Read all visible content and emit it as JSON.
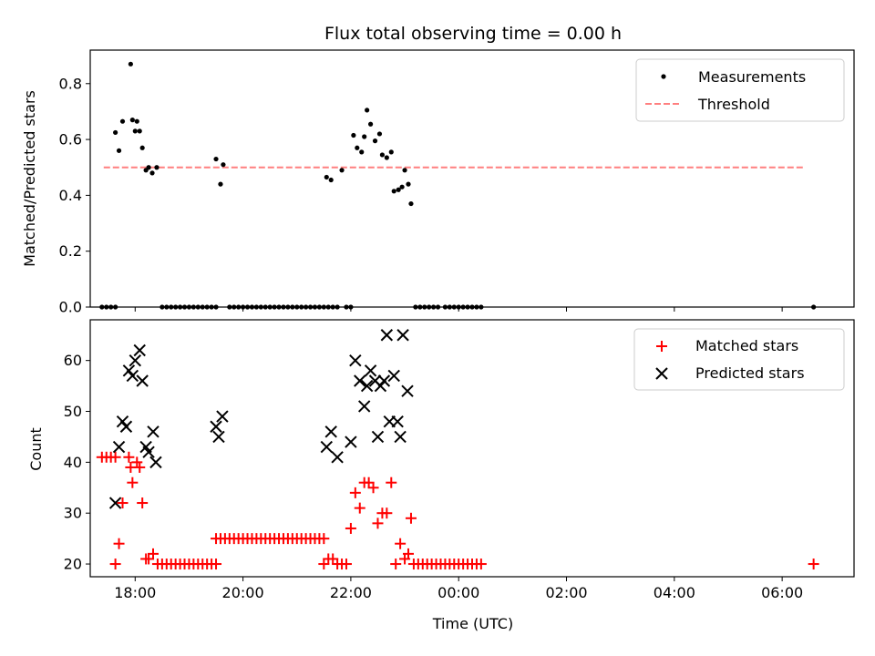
{
  "chart_data": [
    {
      "type": "scatter",
      "title": "Flux total observing time = 0.00 h",
      "xlabel": "",
      "ylabel": "Matched/Predicted stars",
      "ylim": [
        0,
        0.92
      ],
      "xlim": [
        "17:10",
        "07:20"
      ],
      "yticks": [
        "0.0",
        "0.2",
        "0.4",
        "0.6",
        "0.8"
      ],
      "legend": "top-right",
      "threshold": {
        "name": "Threshold",
        "value": 0.5,
        "x_range": [
          "17:25",
          "06:25"
        ],
        "color": "#ff7f7f"
      },
      "series": [
        {
          "name": "Measurements",
          "color": "#000000",
          "points": [
            [
              "17:23",
              0.0
            ],
            [
              "17:28",
              0.0
            ],
            [
              "17:33",
              0.0
            ],
            [
              "17:38",
              0.0
            ],
            [
              "17:38",
              0.625
            ],
            [
              "17:42",
              0.56
            ],
            [
              "17:46",
              0.665
            ],
            [
              "17:55",
              0.87
            ],
            [
              "17:57",
              0.67
            ],
            [
              "18:00",
              0.63
            ],
            [
              "18:02",
              0.665
            ],
            [
              "18:05",
              0.63
            ],
            [
              "18:08",
              0.57
            ],
            [
              "18:12",
              0.49
            ],
            [
              "18:15",
              0.5
            ],
            [
              "18:19",
              0.48
            ],
            [
              "18:24",
              0.5
            ],
            [
              "18:30",
              0.0
            ],
            [
              "18:35",
              0.0
            ],
            [
              "18:40",
              0.0
            ],
            [
              "18:45",
              0.0
            ],
            [
              "18:50",
              0.0
            ],
            [
              "18:55",
              0.0
            ],
            [
              "19:00",
              0.0
            ],
            [
              "19:05",
              0.0
            ],
            [
              "19:10",
              0.0
            ],
            [
              "19:15",
              0.0
            ],
            [
              "19:20",
              0.0
            ],
            [
              "19:25",
              0.0
            ],
            [
              "19:30",
              0.0
            ],
            [
              "19:30",
              0.53
            ],
            [
              "19:35",
              0.44
            ],
            [
              "19:38",
              0.51
            ],
            [
              "19:45",
              0.0
            ],
            [
              "19:50",
              0.0
            ],
            [
              "19:55",
              0.0
            ],
            [
              "20:00",
              0.0
            ],
            [
              "20:05",
              0.0
            ],
            [
              "20:10",
              0.0
            ],
            [
              "20:15",
              0.0
            ],
            [
              "20:20",
              0.0
            ],
            [
              "20:25",
              0.0
            ],
            [
              "20:30",
              0.0
            ],
            [
              "20:35",
              0.0
            ],
            [
              "20:40",
              0.0
            ],
            [
              "20:45",
              0.0
            ],
            [
              "20:50",
              0.0
            ],
            [
              "20:55",
              0.0
            ],
            [
              "21:00",
              0.0
            ],
            [
              "21:05",
              0.0
            ],
            [
              "21:10",
              0.0
            ],
            [
              "21:15",
              0.0
            ],
            [
              "21:20",
              0.0
            ],
            [
              "21:25",
              0.0
            ],
            [
              "21:30",
              0.0
            ],
            [
              "21:35",
              0.0
            ],
            [
              "21:40",
              0.0
            ],
            [
              "21:33",
              0.465
            ],
            [
              "21:38",
              0.455
            ],
            [
              "21:45",
              0.0
            ],
            [
              "21:50",
              0.49
            ],
            [
              "21:55",
              0.0
            ],
            [
              "22:00",
              0.0
            ],
            [
              "22:03",
              0.615
            ],
            [
              "22:07",
              0.57
            ],
            [
              "22:12",
              0.555
            ],
            [
              "22:15",
              0.61
            ],
            [
              "22:18",
              0.705
            ],
            [
              "22:22",
              0.655
            ],
            [
              "22:27",
              0.595
            ],
            [
              "22:32",
              0.62
            ],
            [
              "22:35",
              0.545
            ],
            [
              "22:40",
              0.535
            ],
            [
              "22:45",
              0.555
            ],
            [
              "22:48",
              0.415
            ],
            [
              "22:53",
              0.42
            ],
            [
              "22:57",
              0.43
            ],
            [
              "23:00",
              0.49
            ],
            [
              "23:04",
              0.44
            ],
            [
              "23:07",
              0.37
            ],
            [
              "23:12",
              0.0
            ],
            [
              "23:17",
              0.0
            ],
            [
              "23:22",
              0.0
            ],
            [
              "23:27",
              0.0
            ],
            [
              "23:32",
              0.0
            ],
            [
              "23:37",
              0.0
            ],
            [
              "23:45",
              0.0
            ],
            [
              "23:50",
              0.0
            ],
            [
              "23:55",
              0.0
            ],
            [
              "00:00",
              0.0
            ],
            [
              "00:05",
              0.0
            ],
            [
              "00:10",
              0.0
            ],
            [
              "00:15",
              0.0
            ],
            [
              "00:20",
              0.0
            ],
            [
              "00:25",
              0.0
            ],
            [
              "06:35",
              0.0
            ]
          ]
        }
      ]
    },
    {
      "type": "scatter",
      "title": "",
      "xlabel": "Time (UTC)",
      "ylabel": "Count",
      "ylim": [
        17.5,
        68
      ],
      "xlim": [
        "17:10",
        "07:20"
      ],
      "yticks": [
        "20",
        "30",
        "40",
        "50",
        "60"
      ],
      "xticks": [
        "18:00",
        "20:00",
        "22:00",
        "00:00",
        "02:00",
        "04:00",
        "06:00"
      ],
      "legend": "top-right",
      "series": [
        {
          "name": "Matched stars",
          "color": "#ff0000",
          "marker": "+",
          "points": [
            [
              "17:23",
              41
            ],
            [
              "17:28",
              41
            ],
            [
              "17:33",
              41
            ],
            [
              "17:38",
              41
            ],
            [
              "17:38",
              20
            ],
            [
              "17:42",
              24
            ],
            [
              "17:46",
              32
            ],
            [
              "17:53",
              41
            ],
            [
              "17:55",
              39
            ],
            [
              "17:57",
              36
            ],
            [
              "18:02",
              40
            ],
            [
              "18:05",
              39
            ],
            [
              "18:08",
              32
            ],
            [
              "18:12",
              21
            ],
            [
              "18:15",
              21
            ],
            [
              "18:20",
              22
            ],
            [
              "18:25",
              20
            ],
            [
              "18:30",
              20
            ],
            [
              "18:35",
              20
            ],
            [
              "18:40",
              20
            ],
            [
              "18:45",
              20
            ],
            [
              "18:50",
              20
            ],
            [
              "18:55",
              20
            ],
            [
              "19:00",
              20
            ],
            [
              "19:05",
              20
            ],
            [
              "19:10",
              20
            ],
            [
              "19:15",
              20
            ],
            [
              "19:20",
              20
            ],
            [
              "19:25",
              20
            ],
            [
              "19:30",
              20
            ],
            [
              "19:30",
              25
            ],
            [
              "19:35",
              25
            ],
            [
              "19:40",
              25
            ],
            [
              "19:45",
              25
            ],
            [
              "19:50",
              25
            ],
            [
              "19:55",
              25
            ],
            [
              "20:00",
              25
            ],
            [
              "20:05",
              25
            ],
            [
              "20:10",
              25
            ],
            [
              "20:15",
              25
            ],
            [
              "20:20",
              25
            ],
            [
              "20:25",
              25
            ],
            [
              "20:30",
              25
            ],
            [
              "20:35",
              25
            ],
            [
              "20:40",
              25
            ],
            [
              "20:45",
              25
            ],
            [
              "20:50",
              25
            ],
            [
              "20:55",
              25
            ],
            [
              "21:00",
              25
            ],
            [
              "21:05",
              25
            ],
            [
              "21:10",
              25
            ],
            [
              "21:15",
              25
            ],
            [
              "21:20",
              25
            ],
            [
              "21:25",
              25
            ],
            [
              "21:30",
              25
            ],
            [
              "21:30",
              20
            ],
            [
              "21:35",
              21
            ],
            [
              "21:40",
              21
            ],
            [
              "21:45",
              20
            ],
            [
              "21:50",
              20
            ],
            [
              "21:55",
              20
            ],
            [
              "22:00",
              27
            ],
            [
              "22:05",
              34
            ],
            [
              "22:10",
              31
            ],
            [
              "22:15",
              36
            ],
            [
              "22:20",
              36
            ],
            [
              "22:25",
              35
            ],
            [
              "22:30",
              28
            ],
            [
              "22:35",
              30
            ],
            [
              "22:40",
              30
            ],
            [
              "22:45",
              36
            ],
            [
              "22:50",
              20
            ],
            [
              "22:55",
              24
            ],
            [
              "23:00",
              21
            ],
            [
              "23:04",
              22
            ],
            [
              "23:07",
              29
            ],
            [
              "23:10",
              20
            ],
            [
              "23:15",
              20
            ],
            [
              "23:20",
              20
            ],
            [
              "23:25",
              20
            ],
            [
              "23:30",
              20
            ],
            [
              "23:35",
              20
            ],
            [
              "23:40",
              20
            ],
            [
              "23:45",
              20
            ],
            [
              "23:50",
              20
            ],
            [
              "23:55",
              20
            ],
            [
              "00:00",
              20
            ],
            [
              "00:05",
              20
            ],
            [
              "00:10",
              20
            ],
            [
              "00:15",
              20
            ],
            [
              "00:20",
              20
            ],
            [
              "00:25",
              20
            ],
            [
              "06:35",
              20
            ]
          ]
        },
        {
          "name": "Predicted stars",
          "color": "#000000",
          "marker": "x",
          "points": [
            [
              "17:38",
              32
            ],
            [
              "17:42",
              43
            ],
            [
              "17:46",
              48
            ],
            [
              "17:50",
              47
            ],
            [
              "17:53",
              58
            ],
            [
              "17:57",
              57
            ],
            [
              "18:00",
              60
            ],
            [
              "18:05",
              62
            ],
            [
              "18:08",
              56
            ],
            [
              "18:12",
              43
            ],
            [
              "18:15",
              42
            ],
            [
              "18:20",
              46
            ],
            [
              "18:23",
              40
            ],
            [
              "19:30",
              47
            ],
            [
              "19:33",
              45
            ],
            [
              "19:37",
              49
            ],
            [
              "21:33",
              43
            ],
            [
              "21:38",
              46
            ],
            [
              "21:45",
              41
            ],
            [
              "22:00",
              44
            ],
            [
              "22:05",
              60
            ],
            [
              "22:10",
              56
            ],
            [
              "22:15",
              51
            ],
            [
              "22:18",
              55
            ],
            [
              "22:22",
              58
            ],
            [
              "22:27",
              56
            ],
            [
              "22:30",
              45
            ],
            [
              "22:33",
              55
            ],
            [
              "22:37",
              56
            ],
            [
              "22:40",
              65
            ],
            [
              "22:43",
              48
            ],
            [
              "22:48",
              57
            ],
            [
              "22:52",
              48
            ],
            [
              "22:55",
              45
            ],
            [
              "22:58",
              65
            ],
            [
              "23:03",
              54
            ]
          ]
        }
      ]
    }
  ]
}
